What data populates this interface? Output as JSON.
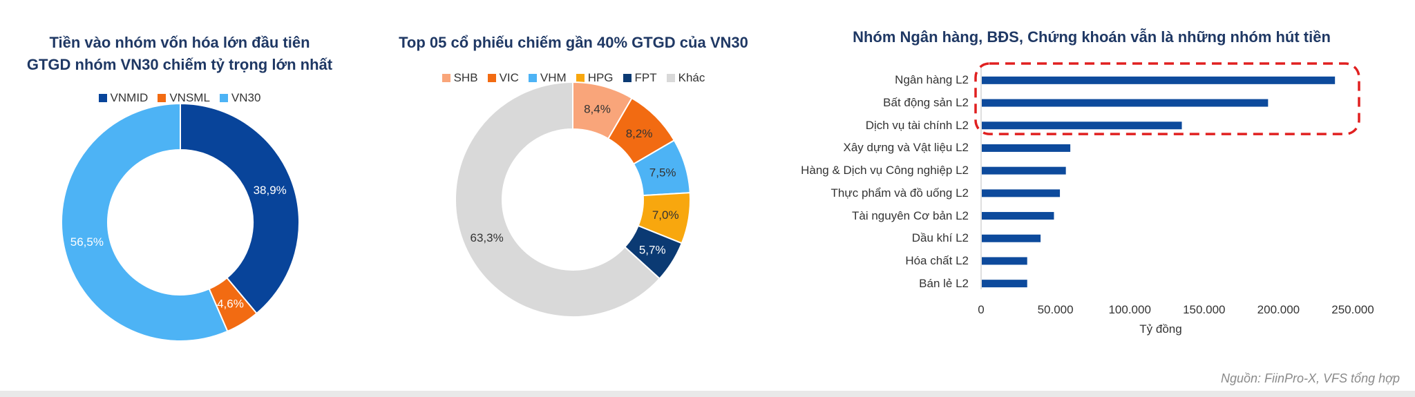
{
  "source_note": "Nguồn: FiinPro-X, VFS tổng hợp",
  "chart_data": [
    {
      "type": "pie",
      "variant": "donut",
      "title": "Tiền vào nhóm vốn hóa lớn đầu tiên\nGTGD nhóm VN30 chiếm tỷ trọng lớn nhất",
      "title_lines": [
        "Tiền vào nhóm vốn hóa lớn đầu tiên",
        "GTGD nhóm VN30 chiếm tỷ trọng lớn nhất"
      ],
      "legend_position": "top",
      "slices": [
        {
          "name": "VNMID",
          "value": 38.9,
          "label": "38,9%",
          "color": "#08449a",
          "label_color": "#ffffff"
        },
        {
          "name": "VNSML",
          "value": 4.6,
          "label": "4,6%",
          "color": "#f26b12",
          "label_color": "#ffffff"
        },
        {
          "name": "VN30",
          "value": 56.5,
          "label": "56,5%",
          "color": "#4db3f5",
          "label_color": "#ffffff"
        }
      ]
    },
    {
      "type": "pie",
      "variant": "donut",
      "title": "Top 05 cổ phiếu chiếm gần 40% GTGD của VN30",
      "title_lines": [
        "Top 05 cổ phiếu chiếm gần 40% GTGD của VN30"
      ],
      "legend_position": "top",
      "slices": [
        {
          "name": "SHB",
          "value": 8.4,
          "label": "8,4%",
          "color": "#f9a57a",
          "label_color": "#333333"
        },
        {
          "name": "VIC",
          "value": 8.2,
          "label": "8,2%",
          "color": "#f26b12",
          "label_color": "#333333"
        },
        {
          "name": "VHM",
          "value": 7.5,
          "label": "7,5%",
          "color": "#4db3f5",
          "label_color": "#333333"
        },
        {
          "name": "HPG",
          "value": 7.0,
          "label": "7,0%",
          "color": "#f8a70e",
          "label_color": "#333333"
        },
        {
          "name": "FPT",
          "value": 5.7,
          "label": "5,7%",
          "color": "#0b3a73",
          "label_color": "#ffffff"
        },
        {
          "name": "Khác",
          "value": 63.3,
          "label": "63,3%",
          "color": "#d9d9d9",
          "label_color": "#333333"
        }
      ]
    },
    {
      "type": "bar",
      "orientation": "horizontal",
      "title": "Nhóm Ngân hàng, BĐS, Chứng khoán vẫn là những nhóm hút tiền",
      "xlabel": "Tỷ đồng",
      "xlim": [
        0,
        250000
      ],
      "x_ticks": [
        0,
        50000,
        100000,
        150000,
        200000,
        250000
      ],
      "x_tick_labels": [
        "0",
        "50.000",
        "100.000",
        "150.000",
        "200.000",
        "250.000"
      ],
      "bar_color": "#0d4a9c",
      "highlight_color": "#e02020",
      "highlighted_categories": [
        "Ngân hàng L2",
        "Bất động sản L2",
        "Dịch vụ tài chính L2"
      ],
      "categories": [
        "Ngân hàng L2",
        "Bất động sản L2",
        "Dịch vụ tài chính L2",
        "Xây dựng và Vật liệu L2",
        "Hàng & Dịch vụ Công nghiệp L2",
        "Thực phẩm và đồ uống L2",
        "Tài nguyên Cơ bản L2",
        "Dầu khí L2",
        "Hóa chất L2",
        "Bán lẻ L2"
      ],
      "values": [
        238000,
        193000,
        135000,
        60000,
        57000,
        53000,
        49000,
        40000,
        31000,
        31000
      ]
    }
  ]
}
